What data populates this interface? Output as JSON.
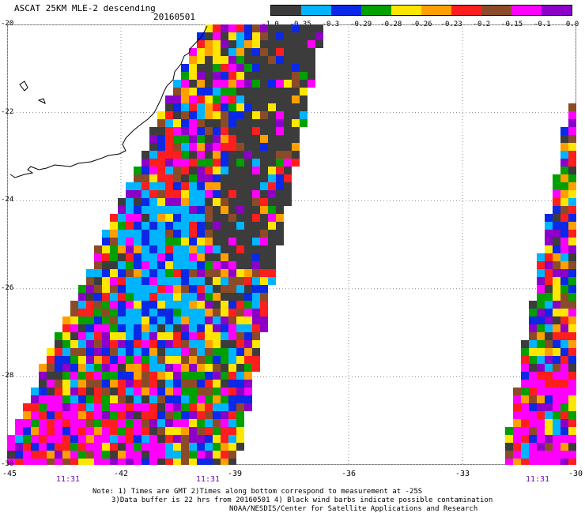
{
  "header": {
    "title": "ASCAT 25KM MLE-2 descending",
    "date": "20160501"
  },
  "colorbar": {
    "labels": [
      "-1.0",
      "-0.35",
      "-0.3",
      "-0.29",
      "-0.28",
      "-0.26",
      "-0.23",
      "-0.2",
      "-0.15",
      "-0.1",
      "0.0"
    ],
    "colors": [
      "#3c3c3c",
      "#00b4ff",
      "#0a28e6",
      "#00a000",
      "#ffe600",
      "#ffa000",
      "#ff1e1e",
      "#8c4b28",
      "#ff00ff",
      "#8c00c8"
    ]
  },
  "axes": {
    "y_labels": [
      "-20",
      "-22",
      "-24",
      "-26",
      "-28",
      "-30"
    ],
    "x_labels": [
      "-45",
      "-42",
      "-39",
      "-36",
      "-33",
      "-30"
    ],
    "lon_range": [
      -45,
      -30
    ],
    "lat_range": [
      -30,
      -20
    ]
  },
  "swath_times": [
    "11:31",
    "11:31",
    "11:31"
  ],
  "notes": {
    "line1": "Note: 1) Times are GMT 2)Times along bottom correspond to measurement at -25S",
    "line2": "3)Data buffer is 22 hrs from 20160501 4) Black wind barbs indicate possible contamination",
    "line3": "NOAA/NESDIS/Center for Satellite Applications and Research"
  }
}
